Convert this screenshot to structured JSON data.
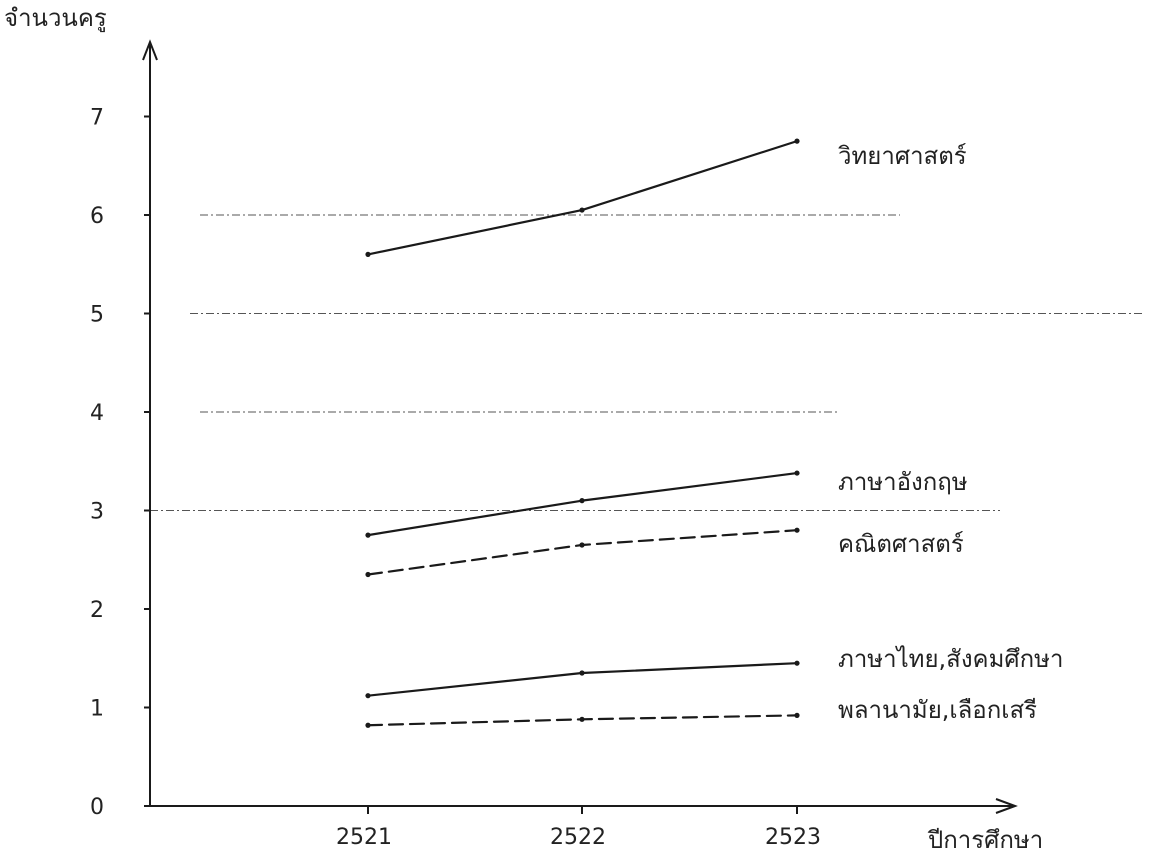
{
  "chart_data": {
    "type": "line",
    "ylabel": "จำนวนครู",
    "xlabel": "ปีการศึกษา",
    "x": [
      "2521",
      "2522",
      "2523"
    ],
    "ylim": [
      0,
      7.5
    ],
    "yticks": [
      "0",
      "1",
      "2",
      "3",
      "4",
      "5",
      "6",
      "7"
    ],
    "grid": "dash-dot horizontal at 3, 4, 5, 6",
    "series": [
      {
        "name": "วิทยาศาสตร์",
        "values": [
          5.6,
          6.05,
          6.75
        ],
        "style": "solid"
      },
      {
        "name": "ภาษาอังกฤษ",
        "values": [
          2.75,
          3.1,
          3.38
        ],
        "style": "solid"
      },
      {
        "name": "คณิตศาสตร์",
        "values": [
          2.35,
          2.65,
          2.8
        ],
        "style": "dashed"
      },
      {
        "name": "ภาษาไทย,สังคมศึกษา",
        "values": [
          1.12,
          1.35,
          1.45
        ],
        "style": "solid"
      },
      {
        "name": "พลานามัย,เลือกเสรี",
        "values": [
          0.82,
          0.88,
          0.92
        ],
        "style": "dashed"
      }
    ],
    "colors": {
      "line": "#1a1a1a",
      "axis": "#1a1a1a",
      "grid": "#555555"
    }
  }
}
